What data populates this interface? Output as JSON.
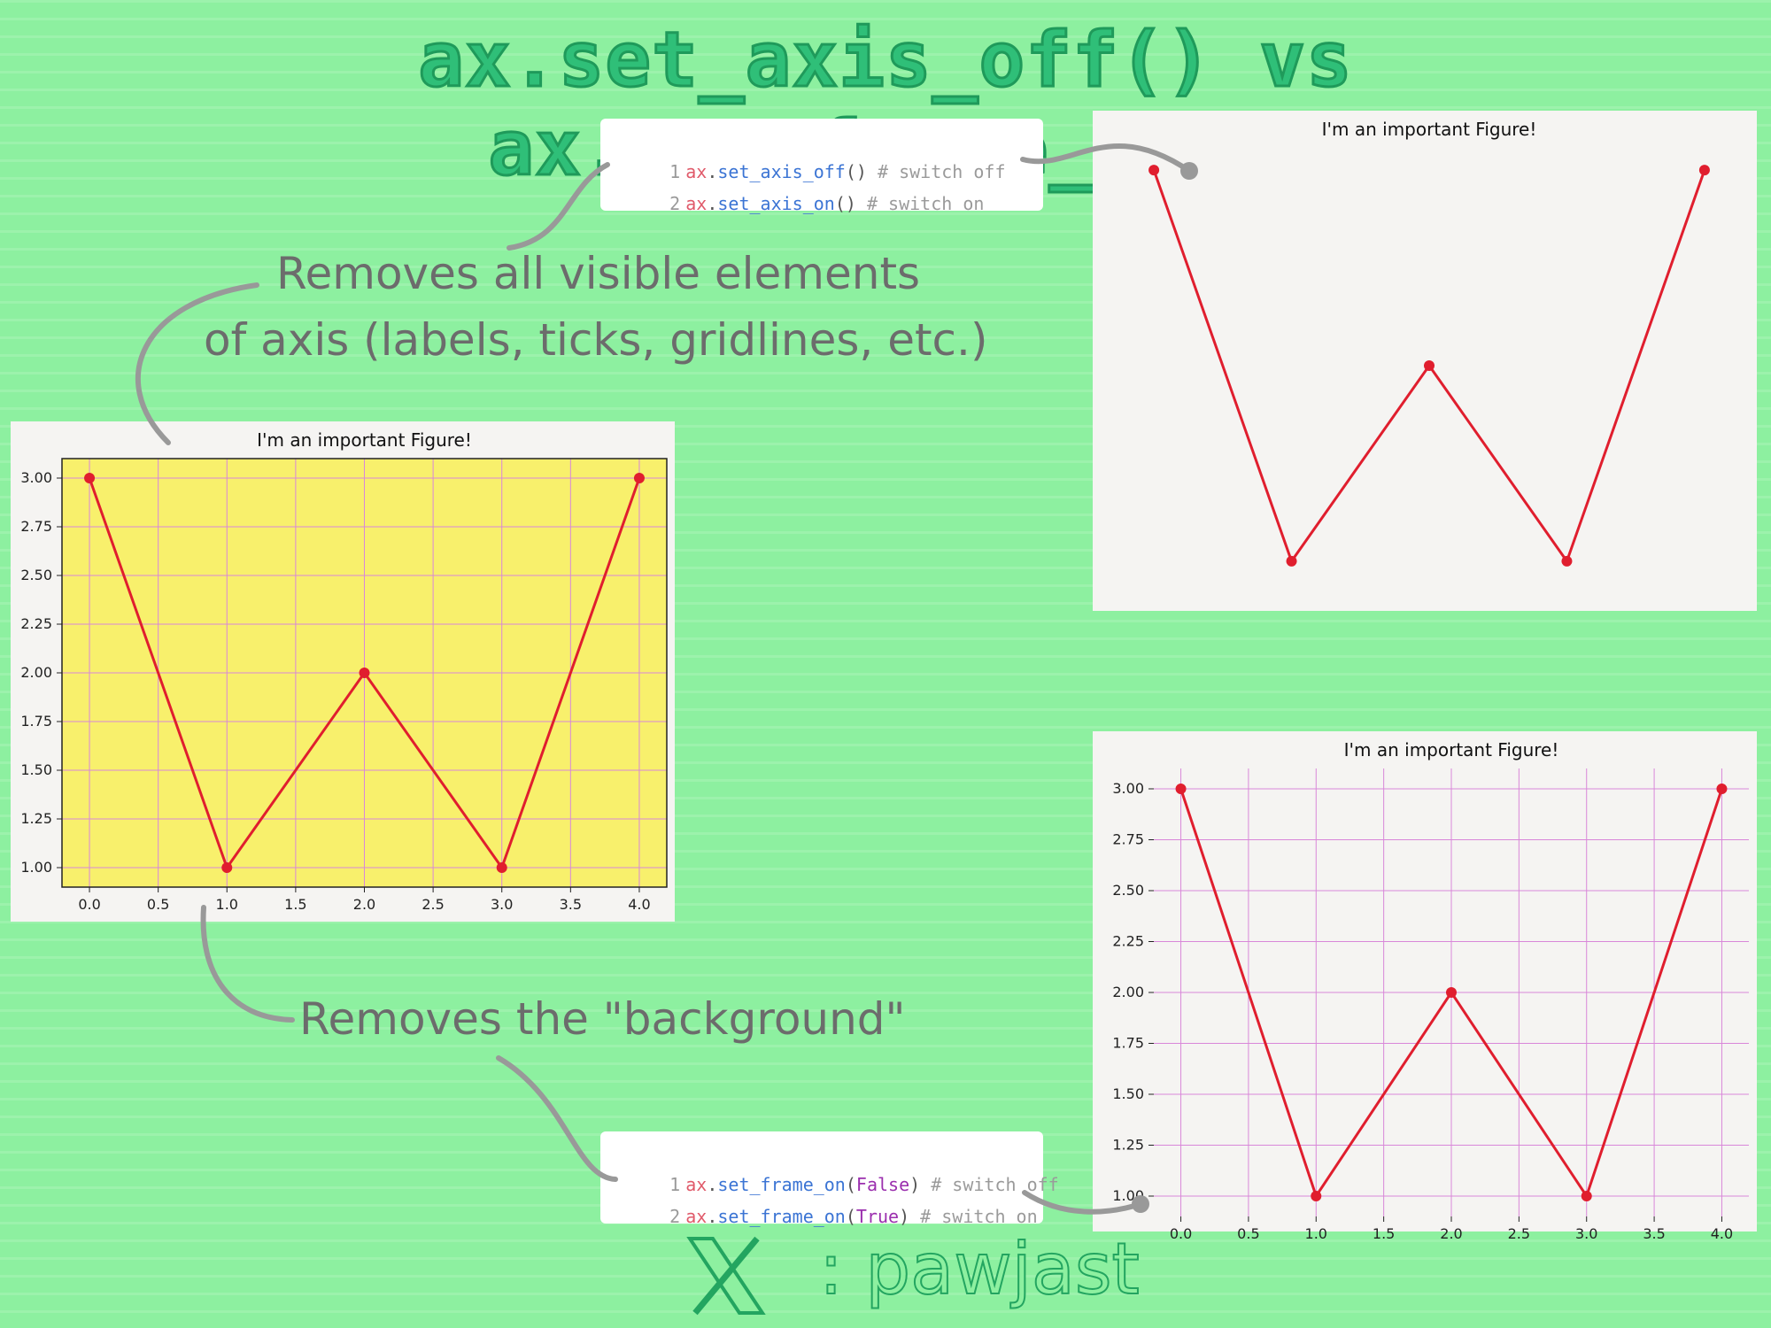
{
  "title": "ax.set_axis_off() vs ax.set_frame_on()",
  "code_axis": {
    "lines": [
      {
        "num": "1",
        "obj": "ax",
        "dot": ".",
        "fn": "set_axis_off",
        "open": "(",
        "arg": "",
        "close": ")",
        "comment": " # switch off"
      },
      {
        "num": "2",
        "obj": "ax",
        "dot": ".",
        "fn": "set_axis_on",
        "open": "(",
        "arg": "",
        "close": ")",
        "comment": " # switch on"
      }
    ]
  },
  "code_frame": {
    "lines": [
      {
        "num": "1",
        "obj": "ax",
        "dot": ".",
        "fn": "set_frame_on",
        "open": "(",
        "arg": "False",
        "close": ")",
        "comment": " # switch off"
      },
      {
        "num": "2",
        "obj": "ax",
        "dot": ".",
        "fn": "set_frame_on",
        "open": "(",
        "arg": "True",
        "close": ")",
        "comment": " # switch on"
      }
    ]
  },
  "notes": {
    "axis_line1": "Removes all visible elements",
    "axis_line2": "of axis (labels, ticks, gridlines, etc.)",
    "frame": "Removes the \"background\""
  },
  "footer": {
    "handle": ": pawjast",
    "logo_icon": "x-logo-icon"
  },
  "colors": {
    "line": "#e01e2e",
    "grid": "#d987d9",
    "yellow_bg": "#f8f06c",
    "figure_bg": "#f5f4f2",
    "accent": "#2fbf78"
  },
  "chart_data": [
    {
      "type": "line",
      "title": "I'm an important Figure!",
      "x": [
        0,
        1,
        2,
        3,
        4
      ],
      "series": [
        {
          "values": [
            3.0,
            1.0,
            2.0,
            1.0,
            3.0
          ]
        }
      ],
      "xlim": [
        -0.2,
        4.2
      ],
      "ylim": [
        0.9,
        3.1
      ],
      "xticks": [
        "0.0",
        "0.5",
        "1.0",
        "1.5",
        "2.0",
        "2.5",
        "3.0",
        "3.5",
        "4.0"
      ],
      "yticks": [
        "1.00",
        "1.25",
        "1.50",
        "1.75",
        "2.00",
        "2.25",
        "2.50",
        "2.75",
        "3.00"
      ],
      "grid": true,
      "axis": true,
      "frame": true,
      "background": "yellow"
    },
    {
      "type": "line",
      "title": "I'm an important Figure!",
      "x": [
        0,
        1,
        2,
        3,
        4
      ],
      "series": [
        {
          "values": [
            3.0,
            1.0,
            2.0,
            1.0,
            3.0
          ]
        }
      ],
      "xlim": [
        -0.2,
        4.2
      ],
      "ylim": [
        0.9,
        3.1
      ],
      "xticks": [],
      "yticks": [],
      "grid": false,
      "axis": false,
      "frame": false,
      "background": "none"
    },
    {
      "type": "line",
      "title": "I'm an important Figure!",
      "x": [
        0,
        1,
        2,
        3,
        4
      ],
      "series": [
        {
          "values": [
            3.0,
            1.0,
            2.0,
            1.0,
            3.0
          ]
        }
      ],
      "xlim": [
        -0.2,
        4.2
      ],
      "ylim": [
        0.9,
        3.1
      ],
      "xticks": [
        "0.0",
        "0.5",
        "1.0",
        "1.5",
        "2.0",
        "2.5",
        "3.0",
        "3.5",
        "4.0"
      ],
      "yticks": [
        "1.00",
        "1.25",
        "1.50",
        "1.75",
        "2.00",
        "2.25",
        "2.50",
        "2.75",
        "3.00"
      ],
      "grid": true,
      "axis": true,
      "frame": false,
      "background": "none"
    }
  ]
}
